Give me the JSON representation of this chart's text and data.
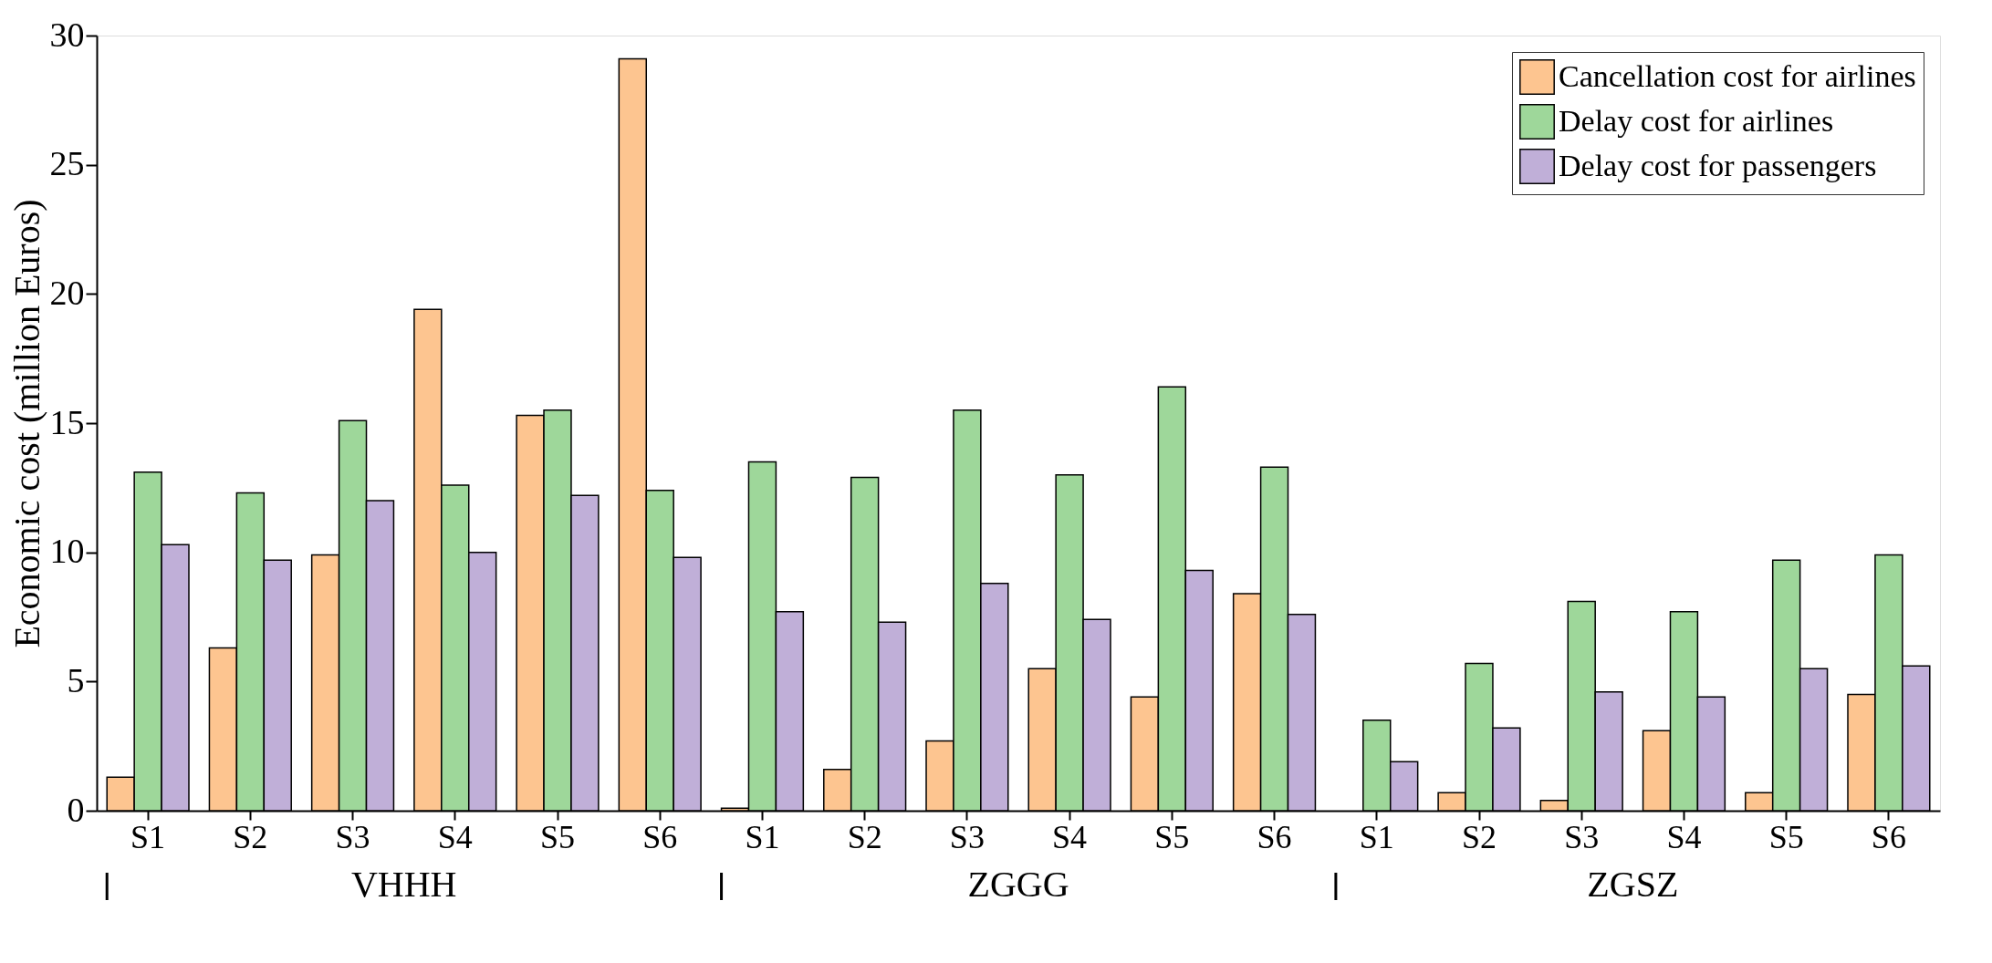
{
  "chart_data": {
    "type": "bar",
    "ylabel": "Economic cost (million Euros)",
    "categories": [
      "S1",
      "S2",
      "S3",
      "S4",
      "S5",
      "S6",
      "S1",
      "S2",
      "S3",
      "S4",
      "S5",
      "S6",
      "S1",
      "S2",
      "S3",
      "S4",
      "S5",
      "S6"
    ],
    "series": [
      {
        "name": "Cancellation cost for airlines",
        "color": "#fdc590",
        "values": [
          1.3,
          6.3,
          9.9,
          19.4,
          15.3,
          29.1,
          0.1,
          1.6,
          2.7,
          5.5,
          4.4,
          8.4,
          0,
          0.7,
          0.4,
          3.1,
          0.7,
          4.5
        ]
      },
      {
        "name": "Delay cost for airlines",
        "color": "#9ed79a",
        "values": [
          13.1,
          12.3,
          15.1,
          12.6,
          15.5,
          12.4,
          13.5,
          12.9,
          15.5,
          13.0,
          16.4,
          13.3,
          3.5,
          5.7,
          8.1,
          7.7,
          9.7,
          9.9
        ]
      },
      {
        "name": "Delay cost for passengers",
        "color": "#c0afd8",
        "values": [
          10.3,
          9.7,
          12.0,
          10.0,
          12.2,
          9.8,
          7.7,
          7.3,
          8.8,
          7.4,
          9.3,
          7.6,
          1.9,
          3.2,
          4.6,
          4.4,
          5.5,
          5.6
        ]
      }
    ],
    "ylim": [
      0,
      30
    ],
    "yticks": [
      0,
      5,
      10,
      15,
      20,
      25,
      30
    ],
    "grid": false,
    "legend": "top right",
    "annotations": [
      "VHHH",
      "ZGGG",
      "ZGSZ"
    ]
  }
}
